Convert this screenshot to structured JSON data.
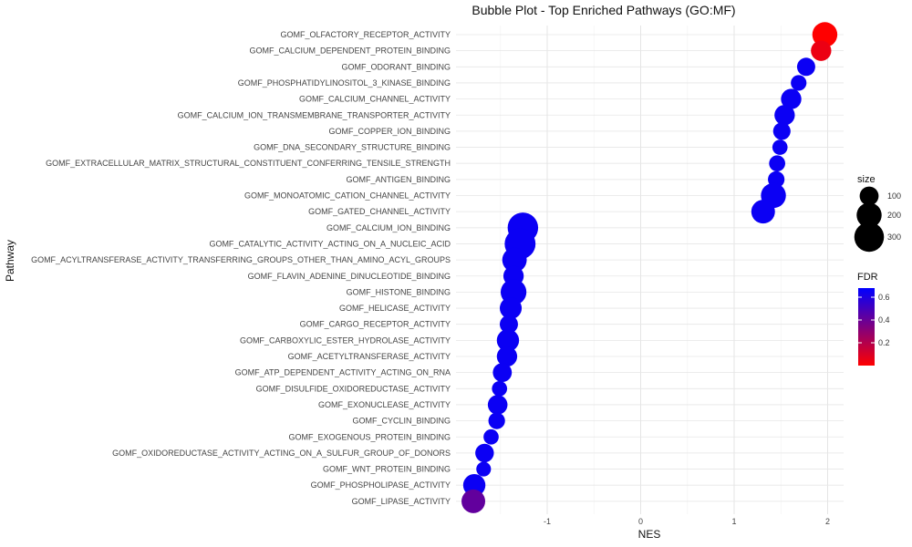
{
  "chart_data": {
    "type": "scatter",
    "title": "Bubble Plot - Top Enriched Pathways (GO:MF)",
    "xlabel": "NES",
    "ylabel": "Pathway",
    "xlim": [
      -2.0,
      2.15
    ],
    "x_ticks": [
      -1,
      0,
      1,
      2
    ],
    "x_tick_labels": [
      "-1",
      "0",
      "1",
      "2"
    ],
    "grid": true,
    "size_legend": {
      "title": "size",
      "values": [
        100,
        200,
        300
      ],
      "labels": [
        "100",
        "200",
        "300"
      ]
    },
    "color_legend": {
      "title": "FDR",
      "range": [
        0.0,
        0.68
      ],
      "ticks": [
        0.2,
        0.4,
        0.6
      ],
      "tick_labels": [
        "0.2",
        "0.4",
        "0.6"
      ],
      "low_color": "#ff0000",
      "high_color": "#0000ff"
    },
    "points": [
      {
        "pathway": "GOMF_OLFACTORY_RECEPTOR_ACTIVITY",
        "nes": 1.97,
        "size": 200,
        "fdr": 0.0
      },
      {
        "pathway": "GOMF_CALCIUM_DEPENDENT_PROTEIN_BINDING",
        "nes": 1.93,
        "size": 120,
        "fdr": 0.05
      },
      {
        "pathway": "GOMF_ODORANT_BINDING",
        "nes": 1.77,
        "size": 90,
        "fdr": 0.65
      },
      {
        "pathway": "GOMF_PHOSPHATIDYLINOSITOL_3_KINASE_BINDING",
        "nes": 1.69,
        "size": 60,
        "fdr": 0.65
      },
      {
        "pathway": "GOMF_CALCIUM_CHANNEL_ACTIVITY",
        "nes": 1.61,
        "size": 120,
        "fdr": 0.65
      },
      {
        "pathway": "GOMF_CALCIUM_ION_TRANSMEMBRANE_TRANSPORTER_ACTIVITY",
        "nes": 1.54,
        "size": 120,
        "fdr": 0.65
      },
      {
        "pathway": "GOMF_COPPER_ION_BINDING",
        "nes": 1.51,
        "size": 80,
        "fdr": 0.65
      },
      {
        "pathway": "GOMF_DNA_SECONDARY_STRUCTURE_BINDING",
        "nes": 1.49,
        "size": 55,
        "fdr": 0.65
      },
      {
        "pathway": "GOMF_EXTRACELLULAR_MATRIX_STRUCTURAL_CONSTITUENT_CONFERRING_TENSILE_STRENGTH",
        "nes": 1.46,
        "size": 65,
        "fdr": 0.65
      },
      {
        "pathway": "GOMF_ANTIGEN_BINDING",
        "nes": 1.45,
        "size": 70,
        "fdr": 0.65
      },
      {
        "pathway": "GOMF_MONOATOMIC_CATION_CHANNEL_ACTIVITY",
        "nes": 1.42,
        "size": 200,
        "fdr": 0.65
      },
      {
        "pathway": "GOMF_GATED_CHANNEL_ACTIVITY",
        "nes": 1.31,
        "size": 175,
        "fdr": 0.65
      },
      {
        "pathway": "GOMF_CALCIUM_ION_BINDING",
        "nes": -1.26,
        "size": 320,
        "fdr": 0.65
      },
      {
        "pathway": "GOMF_CATALYTIC_ACTIVITY_ACTING_ON_A_NUCLEIC_ACID",
        "nes": -1.29,
        "size": 330,
        "fdr": 0.65
      },
      {
        "pathway": "GOMF_ACYLTRANSFERASE_ACTIVITY_TRANSFERRING_GROUPS_OTHER_THAN_AMINO_ACYL_GROUPS",
        "nes": -1.35,
        "size": 190,
        "fdr": 0.65
      },
      {
        "pathway": "GOMF_FLAVIN_ADENINE_DINUCLEOTIDE_BINDING",
        "nes": -1.36,
        "size": 120,
        "fdr": 0.65
      },
      {
        "pathway": "GOMF_HISTONE_BINDING",
        "nes": -1.36,
        "size": 215,
        "fdr": 0.65
      },
      {
        "pathway": "GOMF_HELICASE_ACTIVITY",
        "nes": -1.39,
        "size": 145,
        "fdr": 0.65
      },
      {
        "pathway": "GOMF_CARGO_RECEPTOR_ACTIVITY",
        "nes": -1.41,
        "size": 90,
        "fdr": 0.65
      },
      {
        "pathway": "GOMF_CARBOXYLIC_ESTER_HYDROLASE_ACTIVITY",
        "nes": -1.42,
        "size": 150,
        "fdr": 0.65
      },
      {
        "pathway": "GOMF_ACETYLTRANSFERASE_ACTIVITY",
        "nes": -1.43,
        "size": 120,
        "fdr": 0.65
      },
      {
        "pathway": "GOMF_ATP_DEPENDENT_ACTIVITY_ACTING_ON_RNA",
        "nes": -1.48,
        "size": 100,
        "fdr": 0.65
      },
      {
        "pathway": "GOMF_DISULFIDE_OXIDOREDUCTASE_ACTIVITY",
        "nes": -1.51,
        "size": 55,
        "fdr": 0.65
      },
      {
        "pathway": "GOMF_EXONUCLEASE_ACTIVITY",
        "nes": -1.53,
        "size": 110,
        "fdr": 0.65
      },
      {
        "pathway": "GOMF_CYCLIN_BINDING",
        "nes": -1.54,
        "size": 70,
        "fdr": 0.65
      },
      {
        "pathway": "GOMF_EXOGENOUS_PROTEIN_BINDING",
        "nes": -1.6,
        "size": 55,
        "fdr": 0.65
      },
      {
        "pathway": "GOMF_OXIDOREDUCTASE_ACTIVITY_ACTING_ON_A_SULFUR_GROUP_OF_DONORS",
        "nes": -1.67,
        "size": 95,
        "fdr": 0.65
      },
      {
        "pathway": "GOMF_WNT_PROTEIN_BINDING",
        "nes": -1.68,
        "size": 50,
        "fdr": 0.65
      },
      {
        "pathway": "GOMF_PHOSPHOLIPASE_ACTIVITY",
        "nes": -1.78,
        "size": 150,
        "fdr": 0.65
      },
      {
        "pathway": "GOMF_LIPASE_ACTIVITY",
        "nes": -1.79,
        "size": 175,
        "fdr": 0.42
      }
    ]
  }
}
